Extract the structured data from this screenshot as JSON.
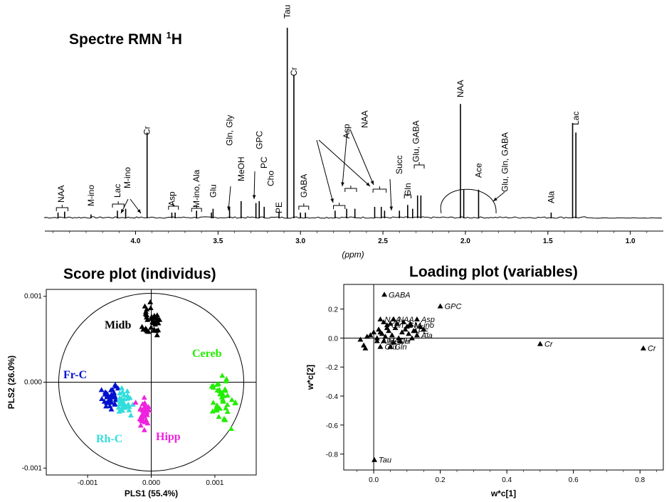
{
  "titles": {
    "spectrum": "Spectre RMN",
    "spectrum_sup": "1",
    "spectrum_suffix": "H",
    "score": "Score plot (individus)",
    "loading": "Loading plot (variables)"
  },
  "chart_data": [
    {
      "type": "line",
      "id": "nmr-spectrum",
      "title": "Spectre RMN 1H",
      "xlabel": "(ppm)",
      "xlim": [
        4.55,
        0.8
      ],
      "x_reversed": true,
      "ticks": [
        4.0,
        3.5,
        3.0,
        2.5,
        2.0,
        1.5,
        1.0
      ],
      "tick_labels": [
        "4.0",
        "3.5",
        "3.0",
        "2.5",
        "2.0",
        "1.5",
        "1.0"
      ],
      "peaks": [
        {
          "ppm": 4.47,
          "height": 0.03
        },
        {
          "ppm": 4.43,
          "height": 0.035
        },
        {
          "ppm": 4.27,
          "height": 0.02
        },
        {
          "ppm": 4.11,
          "height": 0.04
        },
        {
          "ppm": 4.06,
          "height": 0.05
        },
        {
          "ppm": 3.93,
          "height": 0.45
        },
        {
          "ppm": 3.78,
          "height": 0.03
        },
        {
          "ppm": 3.76,
          "height": 0.03
        },
        {
          "ppm": 3.63,
          "height": 0.04
        },
        {
          "ppm": 3.54,
          "height": 0.03
        },
        {
          "ppm": 3.53,
          "height": 0.05
        },
        {
          "ppm": 3.43,
          "height": 0.06
        },
        {
          "ppm": 3.36,
          "height": 0.09
        },
        {
          "ppm": 3.27,
          "height": 0.08
        },
        {
          "ppm": 3.25,
          "height": 0.09
        },
        {
          "ppm": 3.22,
          "height": 0.06
        },
        {
          "ppm": 3.13,
          "height": 0.03
        },
        {
          "ppm": 3.08,
          "height": 1.0
        },
        {
          "ppm": 3.04,
          "height": 0.75
        },
        {
          "ppm": 3.0,
          "height": 0.03
        },
        {
          "ppm": 2.97,
          "height": 0.03
        },
        {
          "ppm": 2.79,
          "height": 0.04
        },
        {
          "ppm": 2.72,
          "height": 0.05
        },
        {
          "ppm": 2.67,
          "height": 0.05
        },
        {
          "ppm": 2.55,
          "height": 0.06
        },
        {
          "ppm": 2.51,
          "height": 0.06
        },
        {
          "ppm": 2.49,
          "height": 0.04
        },
        {
          "ppm": 2.4,
          "height": 0.04
        },
        {
          "ppm": 2.35,
          "height": 0.07
        },
        {
          "ppm": 2.32,
          "height": 0.05
        },
        {
          "ppm": 2.29,
          "height": 0.12
        },
        {
          "ppm": 2.27,
          "height": 0.12
        },
        {
          "ppm": 2.03,
          "height": 0.6
        },
        {
          "ppm": 2.01,
          "height": 0.15
        },
        {
          "ppm": 1.92,
          "height": 0.15
        },
        {
          "ppm": 1.48,
          "height": 0.03
        },
        {
          "ppm": 1.35,
          "height": 0.5
        },
        {
          "ppm": 1.33,
          "height": 0.45
        }
      ],
      "annotations": [
        {
          "label": "NAA",
          "ppm": 4.45
        },
        {
          "label": "M-ino",
          "ppm": 4.27
        },
        {
          "label": "Lac",
          "ppm": 4.11
        },
        {
          "label": "M-ino",
          "ppm": 4.05
        },
        {
          "label": "Cr",
          "ppm": 3.93
        },
        {
          "label": "Asp",
          "ppm": 3.78
        },
        {
          "label": "M-ino, Ala",
          "ppm": 3.63
        },
        {
          "label": "Glu",
          "ppm": 3.53
        },
        {
          "label": "Gln, Gly",
          "ppm": 3.43
        },
        {
          "label": "MeOH",
          "ppm": 3.36
        },
        {
          "label": "GPC",
          "ppm": 3.25
        },
        {
          "label": "PC",
          "ppm": 3.22
        },
        {
          "label": "Cho",
          "ppm": 3.18
        },
        {
          "label": "PE",
          "ppm": 3.13
        },
        {
          "label": "Tau",
          "ppm": 3.08
        },
        {
          "label": "Cr",
          "ppm": 3.04
        },
        {
          "label": "GABA",
          "ppm": 2.98
        },
        {
          "label": "Asp",
          "ppm": 2.72
        },
        {
          "label": "NAA",
          "ppm": 2.61
        },
        {
          "label": "Succ",
          "ppm": 2.4
        },
        {
          "label": "Gln",
          "ppm": 2.35
        },
        {
          "label": "Glu, GABA",
          "ppm": 2.3
        },
        {
          "label": "NAA",
          "ppm": 2.03
        },
        {
          "label": "Ace",
          "ppm": 1.92
        },
        {
          "label": "Glu, Gln, GABA",
          "ppm": 1.76
        },
        {
          "label": "Ala",
          "ppm": 1.48
        },
        {
          "label": "Lac",
          "ppm": 1.33
        }
      ]
    },
    {
      "type": "scatter",
      "id": "score-plot",
      "title": "Score plot (individus)",
      "xlabel": "PLS1 (55.4%)",
      "ylabel": "PLS2 (26.0%)",
      "xlim": [
        -0.00165,
        0.00165
      ],
      "ylim": [
        -0.00108,
        0.00108
      ],
      "xticks": [
        -0.001,
        0,
        0.001
      ],
      "xtick_labels": [
        "-0.001",
        "0.000",
        "0.001"
      ],
      "yticks": [
        0.001,
        0,
        -0.001
      ],
      "ytick_labels": [
        "0.001",
        "0.000",
        "-0.001"
      ],
      "groups": [
        {
          "name": "Midb",
          "color": "#000000",
          "center": [
            -2e-05,
            0.00071
          ],
          "spread": [
            0.00014,
            0.00017
          ],
          "n": 40
        },
        {
          "name": "Cereb",
          "color": "#22ee00",
          "center": [
            0.00112,
            -0.0002
          ],
          "spread": [
            0.00019,
            0.00022
          ],
          "n": 42
        },
        {
          "name": "Fr-C",
          "color": "#0011cc",
          "center": [
            -0.00064,
            -0.00018
          ],
          "spread": [
            0.00012,
            0.00012
          ],
          "n": 32
        },
        {
          "name": "Rh-C",
          "color": "#33dddd",
          "center": [
            -0.00043,
            -0.00025
          ],
          "spread": [
            0.00011,
            0.00013
          ],
          "n": 34
        },
        {
          "name": "Hipp",
          "color": "#ee22dd",
          "center": [
            -0.00012,
            -0.00038
          ],
          "spread": [
            0.00011,
            0.00016
          ],
          "n": 38
        }
      ]
    },
    {
      "type": "scatter",
      "id": "loading-plot",
      "title": "Loading plot (variables)",
      "xlabel": "w*c[1]",
      "ylabel": "w*c[2]",
      "xlim": [
        -0.09,
        0.87
      ],
      "ylim": [
        -0.91,
        0.37
      ],
      "xticks": [
        0.0,
        0.2,
        0.4,
        0.6,
        0.8
      ],
      "xtick_labels": [
        "0.0",
        "0.2",
        "0.4",
        "0.6",
        "0.8"
      ],
      "yticks": [
        0.2,
        0.0,
        -0.2,
        -0.4,
        -0.6,
        -0.8
      ],
      "ytick_labels": [
        "0.2",
        "0.0",
        "-0.2",
        "-0.4",
        "-0.6",
        "-0.8"
      ],
      "points": [
        {
          "x": 0.032,
          "y": 0.3,
          "label": "GABA"
        },
        {
          "x": 0.2,
          "y": 0.22,
          "label": "GPC"
        },
        {
          "x": 0.5,
          "y": -0.04,
          "label": "Cr"
        },
        {
          "x": 0.81,
          "y": -0.07,
          "label": "Cr"
        },
        {
          "x": 0.002,
          "y": -0.84,
          "label": "Tau"
        },
        {
          "x": 0.02,
          "y": 0.13,
          "label": "NAA"
        },
        {
          "x": 0.06,
          "y": 0.13,
          "label": "NAA"
        },
        {
          "x": 0.13,
          "y": 0.13,
          "label": "Asp"
        },
        {
          "x": 0.11,
          "y": 0.09,
          "label": "M-ino"
        },
        {
          "x": 0.04,
          "y": 0.09,
          "label": "Gln, Gly"
        },
        {
          "x": 0.12,
          "y": 0.05,
          "label": "PE"
        },
        {
          "x": 0.13,
          "y": 0.02,
          "label": "Ala"
        },
        {
          "x": 0.02,
          "y": -0.06,
          "label": "Glu"
        },
        {
          "x": 0.03,
          "y": -0.02,
          "label": "MeOH"
        },
        {
          "x": 0.05,
          "y": -0.06,
          "label": "Gln"
        },
        {
          "x": 0.01,
          "y": -0.02,
          "label": "Ala, Glu"
        },
        {
          "x": -0.04,
          "y": -0.01
        },
        {
          "x": -0.02,
          "y": 0.01
        },
        {
          "x": -0.03,
          "y": -0.05
        },
        {
          "x": -0.025,
          "y": -0.07
        },
        {
          "x": -0.01,
          "y": 0.02
        },
        {
          "x": 0.0,
          "y": 0.04
        },
        {
          "x": 0.01,
          "y": 0.0
        },
        {
          "x": 0.015,
          "y": 0.06
        },
        {
          "x": 0.025,
          "y": 0.03
        },
        {
          "x": 0.035,
          "y": 0.01
        },
        {
          "x": 0.045,
          "y": 0.05
        },
        {
          "x": 0.055,
          "y": 0.02
        },
        {
          "x": 0.065,
          "y": 0.07
        },
        {
          "x": 0.075,
          "y": 0.0
        },
        {
          "x": 0.085,
          "y": 0.04
        },
        {
          "x": 0.095,
          "y": 0.06
        },
        {
          "x": 0.105,
          "y": 0.03
        },
        {
          "x": 0.115,
          "y": 0.0
        },
        {
          "x": 0.125,
          "y": 0.05
        },
        {
          "x": 0.07,
          "y": 0.1
        },
        {
          "x": 0.09,
          "y": 0.11
        },
        {
          "x": 0.05,
          "y": 0.1
        },
        {
          "x": 0.1,
          "y": 0.08
        },
        {
          "x": 0.08,
          "y": -0.02
        },
        {
          "x": 0.06,
          "y": -0.03
        },
        {
          "x": 0.04,
          "y": 0.07
        },
        {
          "x": 0.02,
          "y": 0.04
        },
        {
          "x": 0.11,
          "y": 0.1
        },
        {
          "x": 0.03,
          "y": 0.11
        },
        {
          "x": 0.14,
          "y": 0.08
        },
        {
          "x": 0.15,
          "y": 0.06
        }
      ]
    }
  ]
}
